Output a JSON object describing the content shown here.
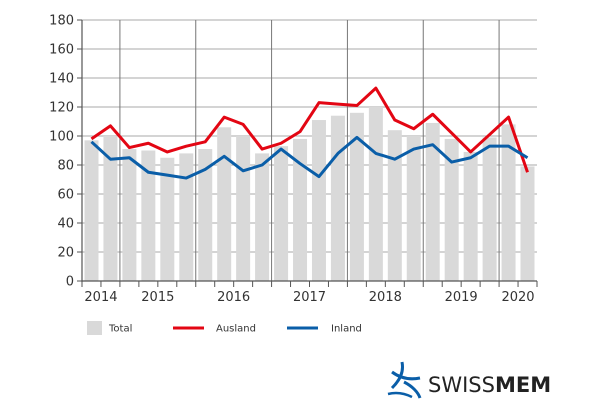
{
  "chart_data": {
    "type": "bar+line",
    "title": "",
    "xlabel": "",
    "ylabel": "",
    "ylim": [
      0,
      180
    ],
    "yticks": [
      0,
      20,
      40,
      60,
      80,
      100,
      120,
      140,
      160,
      180
    ],
    "year_labels": [
      "2014",
      "2015",
      "2016",
      "2017",
      "2018",
      "2019",
      "2020"
    ],
    "categories": [
      "2014 Q3",
      "2014 Q4",
      "2015 Q1",
      "2015 Q2",
      "2015 Q3",
      "2015 Q4",
      "2016 Q1",
      "2016 Q2",
      "2016 Q3",
      "2016 Q4",
      "2017 Q1",
      "2017 Q2",
      "2017 Q3",
      "2017 Q4",
      "2018 Q1",
      "2018 Q2",
      "2018 Q3",
      "2018 Q4",
      "2019 Q1",
      "2019 Q2",
      "2019 Q3",
      "2019 Q4",
      "2020 Q1",
      "2020 Q2"
    ],
    "grid": true,
    "legend_position": "bottom",
    "series": [
      {
        "name": "Total",
        "type": "bar",
        "color": "#d9d9d9",
        "values": [
          97,
          100,
          91,
          90,
          85,
          88,
          91,
          106,
          100,
          88,
          93,
          98,
          111,
          114,
          116,
          120,
          104,
          100,
          109,
          98,
          89,
          99,
          108,
          79
        ]
      },
      {
        "name": "Ausland",
        "type": "line",
        "color": "#e30613",
        "values": [
          98,
          107,
          92,
          95,
          89,
          93,
          96,
          113,
          108,
          91,
          95,
          103,
          123,
          122,
          121,
          133,
          111,
          105,
          115,
          102,
          89,
          101,
          113,
          75
        ]
      },
      {
        "name": "Inland",
        "type": "line",
        "color": "#0a5ea8",
        "values": [
          96,
          84,
          85,
          75,
          73,
          71,
          77,
          86,
          76,
          80,
          91,
          81,
          72,
          88,
          99,
          88,
          84,
          91,
          94,
          82,
          85,
          93,
          93,
          85
        ]
      }
    ]
  },
  "logo": {
    "text_light": "SWISS",
    "text_bold": "MEM"
  }
}
